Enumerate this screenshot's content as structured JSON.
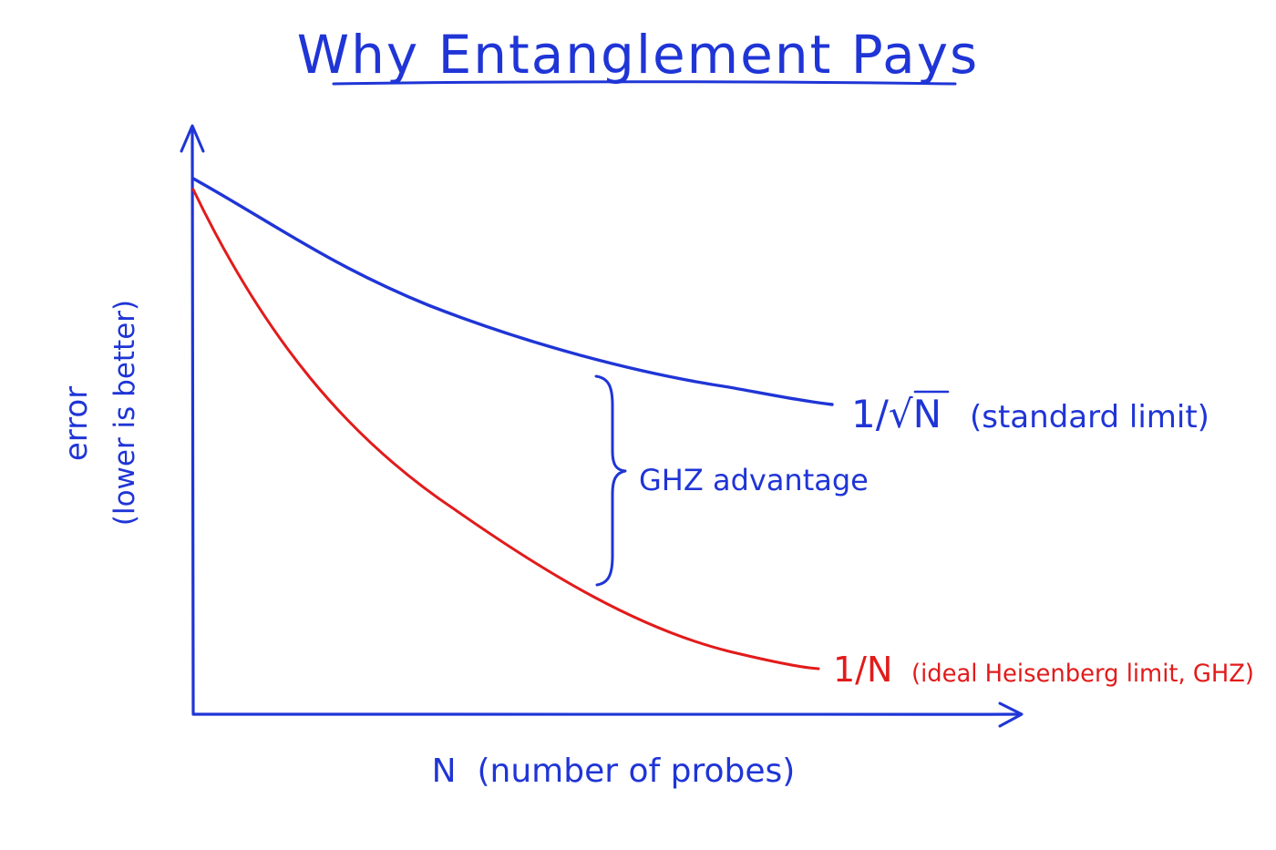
{
  "title": "Why Entanglement Pays",
  "y_axis": {
    "line1": "error",
    "line2": "(lower is better)"
  },
  "x_axis": {
    "label": "N  (number of probes)"
  },
  "curves": {
    "standard": {
      "formula_prefix": "1/",
      "formula_root": "√N",
      "description": "(standard limit)"
    },
    "heisenberg": {
      "formula": "1/N",
      "description": "(ideal Heisenberg limit, GHZ)"
    }
  },
  "bracket_label": "GHZ advantage",
  "colors": {
    "ink": "#1f35d6",
    "red": "#e21b1b"
  }
}
